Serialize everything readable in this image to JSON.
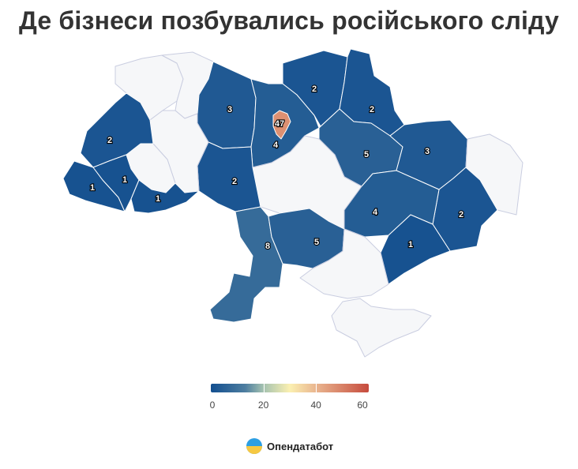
{
  "title": "Де бізнеси позбувались російського сліду",
  "legend": {
    "min": 0,
    "max": 60,
    "ticks": [
      "0",
      "20",
      "40",
      "60"
    ],
    "colors": [
      "#124e8f",
      "#4e7ea0",
      "#a3c1b0",
      "#fbf0b1",
      "#e9b48e",
      "#c64b3d"
    ]
  },
  "colors": {
    "empty": "#f6f7f9",
    "border": "#c9cde0"
  },
  "regions": [
    {
      "name": "volyn",
      "value": null
    },
    {
      "name": "rivne",
      "value": null
    },
    {
      "name": "zhytomyr",
      "value": 3
    },
    {
      "name": "kyiv-oblast",
      "value": 4
    },
    {
      "name": "kyiv-city",
      "value": 47
    },
    {
      "name": "chernihiv",
      "value": 2
    },
    {
      "name": "sumy",
      "value": 2
    },
    {
      "name": "poltava",
      "value": 5
    },
    {
      "name": "kharkiv",
      "value": 3
    },
    {
      "name": "luhansk",
      "value": null
    },
    {
      "name": "donetsk",
      "value": 2
    },
    {
      "name": "dnipro",
      "value": 4
    },
    {
      "name": "zaporizhzhia",
      "value": 1
    },
    {
      "name": "kirovohrad",
      "value": null
    },
    {
      "name": "cherkasy",
      "value": null
    },
    {
      "name": "vinnytsia",
      "value": 2
    },
    {
      "name": "khmelnytskyi",
      "value": null
    },
    {
      "name": "ternopil",
      "value": null
    },
    {
      "name": "lviv",
      "value": 2
    },
    {
      "name": "zakarpattia",
      "value": 1
    },
    {
      "name": "ivano-frankivsk",
      "value": 1
    },
    {
      "name": "chernivtsi",
      "value": 1
    },
    {
      "name": "odesa",
      "value": 8
    },
    {
      "name": "mykolaiv",
      "value": 5
    },
    {
      "name": "kherson",
      "value": null
    },
    {
      "name": "crimea",
      "value": null
    }
  ],
  "brand": {
    "name": "Опендатабот"
  }
}
